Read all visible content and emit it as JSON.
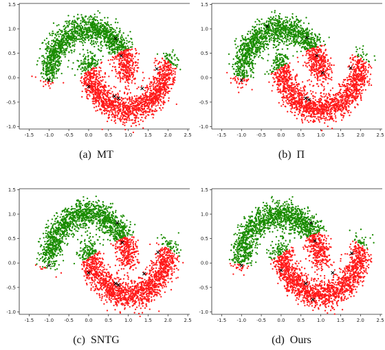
{
  "chart_data": [
    {
      "type": "scatter",
      "caption": "(a)  MT",
      "xlim": [
        -1.75,
        2.55
      ],
      "ylim": [
        -1.05,
        1.52
      ],
      "xticks": [
        "-1.5",
        "-1.0",
        "-0.5",
        "0.0",
        "0.5",
        "1.0",
        "1.5",
        "2.0",
        "2.5"
      ],
      "yticks": [
        "-1.0",
        "-0.5",
        "0.0",
        "0.5",
        "1.0",
        "1.5"
      ],
      "series": [
        {
          "color": "#1a8c00",
          "n": 1700,
          "moon": "upper"
        },
        {
          "color": "#ff1a1a",
          "n": 1700,
          "moon": "lower"
        }
      ],
      "boundary_shift": 0.0,
      "labeled_points": [
        [
          -1.0,
          -0.05
        ],
        [
          0.0,
          -0.18
        ],
        [
          0.68,
          0.8
        ],
        [
          0.82,
          0.45
        ],
        [
          0.65,
          -0.38
        ],
        [
          0.75,
          -0.42
        ],
        [
          1.35,
          -0.22
        ],
        [
          1.72,
          0.18
        ]
      ]
    },
    {
      "type": "scatter",
      "caption": "(b)  Π",
      "xlim": [
        -1.75,
        2.55
      ],
      "ylim": [
        -1.05,
        1.52
      ],
      "xticks": [
        "-1.5",
        "-1.0",
        "-0.5",
        "0.0",
        "0.5",
        "1.0",
        "1.5",
        "2.0",
        "2.5"
      ],
      "yticks": [
        "-1.0",
        "-0.5",
        "0.0",
        "0.5",
        "1.0",
        "1.5"
      ],
      "series": [
        {
          "color": "#1a8c00",
          "n": 1700,
          "moon": "upper"
        },
        {
          "color": "#ff1a1a",
          "n": 1700,
          "moon": "lower"
        }
      ],
      "boundary_shift": 0.07,
      "labeled_points": [
        [
          -1.0,
          -0.05
        ],
        [
          -0.35,
          1.05
        ],
        [
          0.65,
          0.82
        ],
        [
          0.9,
          0.45
        ],
        [
          0.62,
          -0.42
        ],
        [
          0.7,
          -0.45
        ],
        [
          1.05,
          0.1
        ],
        [
          1.75,
          0.2
        ]
      ]
    },
    {
      "type": "scatter",
      "caption": "(c)  SNTG",
      "xlim": [
        -1.75,
        2.55
      ],
      "ylim": [
        -1.05,
        1.52
      ],
      "xticks": [
        "-1.5",
        "-1.0",
        "-0.5",
        "0.0",
        "0.5",
        "1.0",
        "1.5",
        "2.0",
        "2.5"
      ],
      "yticks": [
        "-1.0",
        "-0.5",
        "0.0",
        "0.5",
        "1.0",
        "1.5"
      ],
      "series": [
        {
          "color": "#1a8c00",
          "n": 1700,
          "moon": "upper"
        },
        {
          "color": "#ff1a1a",
          "n": 1700,
          "moon": "lower"
        }
      ],
      "boundary_shift": -0.04,
      "labeled_points": [
        [
          -1.0,
          -0.05
        ],
        [
          0.0,
          -0.2
        ],
        [
          0.72,
          0.82
        ],
        [
          0.85,
          0.42
        ],
        [
          0.68,
          -0.42
        ],
        [
          0.75,
          -0.45
        ],
        [
          1.4,
          -0.22
        ],
        [
          1.75,
          0.22
        ]
      ]
    },
    {
      "type": "scatter",
      "caption": "(d)  Ours",
      "xlim": [
        -1.75,
        2.55
      ],
      "ylim": [
        -1.05,
        1.52
      ],
      "xticks": [
        "-1.5",
        "-1.0",
        "-0.5",
        "0.0",
        "0.5",
        "1.0",
        "1.5",
        "2.0",
        "2.5"
      ],
      "yticks": [
        "-1.0",
        "-0.5",
        "0.0",
        "0.5",
        "1.0",
        "1.5"
      ],
      "series": [
        {
          "color": "#1a8c00",
          "n": 1700,
          "moon": "upper"
        },
        {
          "color": "#ff1a1a",
          "n": 1700,
          "moon": "lower"
        }
      ],
      "boundary_shift": 0.04,
      "labeled_points": [
        [
          -1.0,
          -0.05
        ],
        [
          0.0,
          -0.15
        ],
        [
          0.75,
          0.82
        ],
        [
          0.85,
          0.45
        ],
        [
          0.62,
          -0.42
        ],
        [
          0.8,
          -0.75
        ],
        [
          1.3,
          -0.2
        ],
        [
          1.78,
          0.2
        ]
      ]
    }
  ]
}
